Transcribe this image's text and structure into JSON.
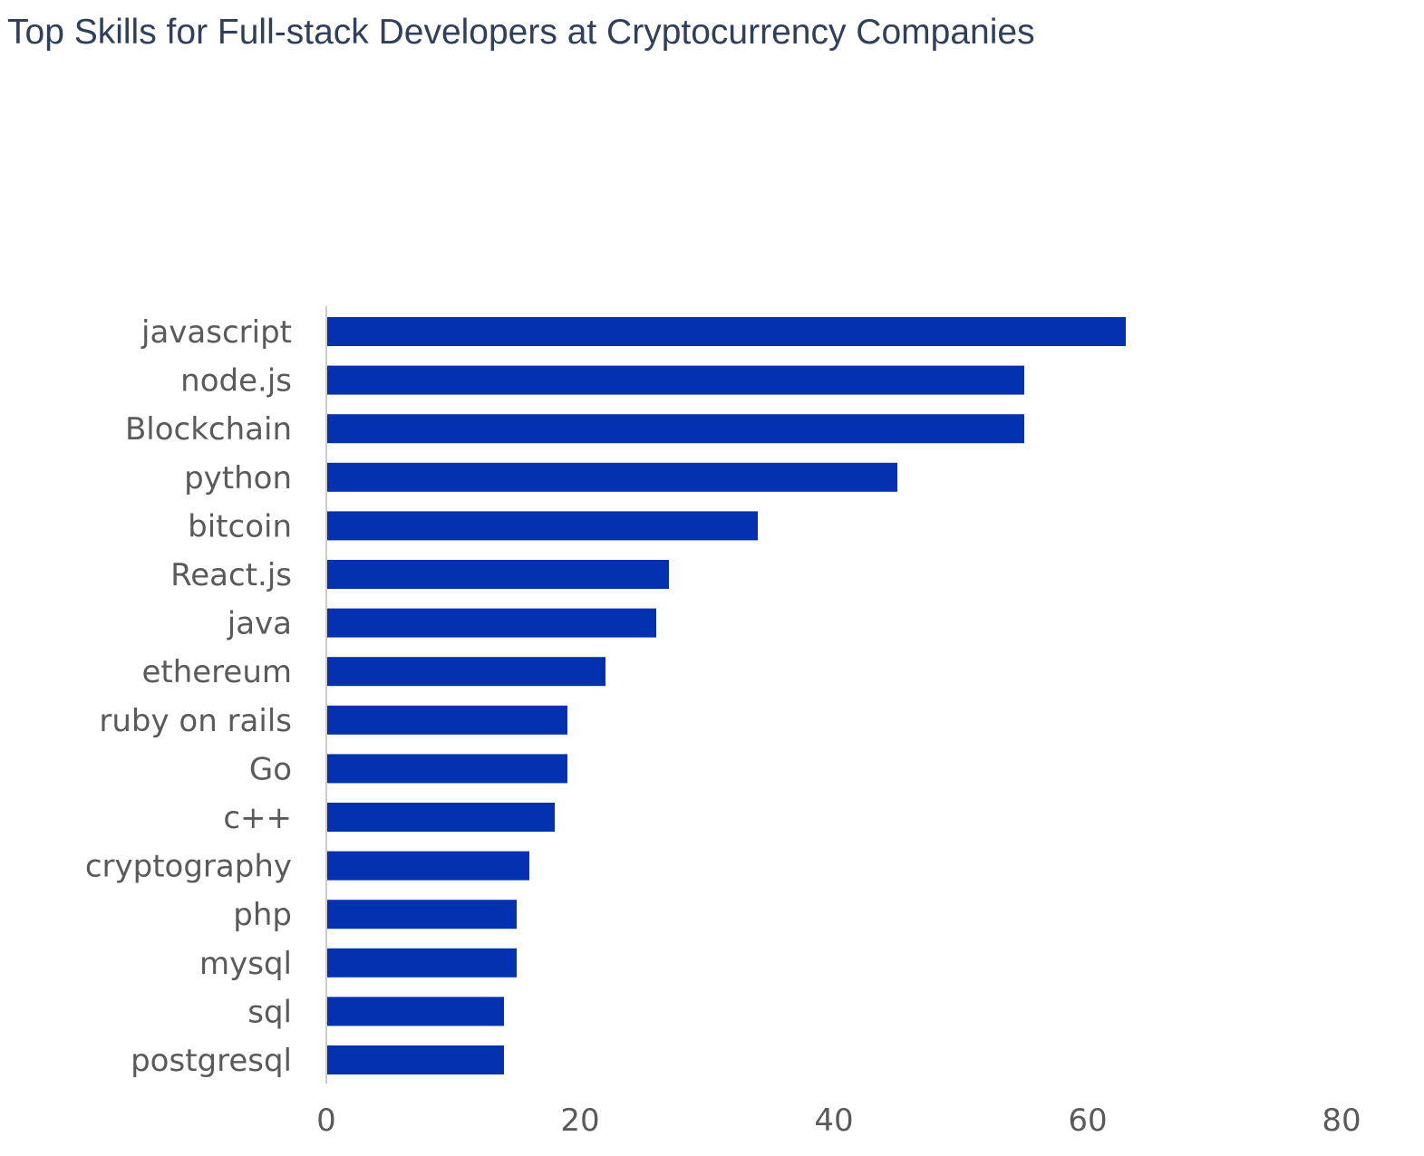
{
  "chart_data": {
    "type": "bar",
    "orientation": "horizontal",
    "title": "Top Skills for Full-stack Developers at Cryptocurrency Companies",
    "xlabel": "",
    "ylabel": "",
    "categories": [
      "javascript",
      "node.js",
      "Blockchain",
      "python",
      "bitcoin",
      "React.js",
      "java",
      "ethereum",
      "ruby on rails",
      "Go",
      "c++",
      "cryptography",
      "php",
      "mysql",
      "sql",
      "postgresql"
    ],
    "values": [
      63,
      55,
      55,
      45,
      34,
      27,
      26,
      22,
      19,
      19,
      18,
      16,
      15,
      15,
      14,
      14
    ],
    "xlim": [
      0,
      80
    ],
    "xticks": [
      "0",
      "20",
      "40",
      "60",
      "80"
    ],
    "grid": false,
    "legend": "none",
    "bar_color": "#0331b0",
    "axis_color": "#cccccc"
  }
}
